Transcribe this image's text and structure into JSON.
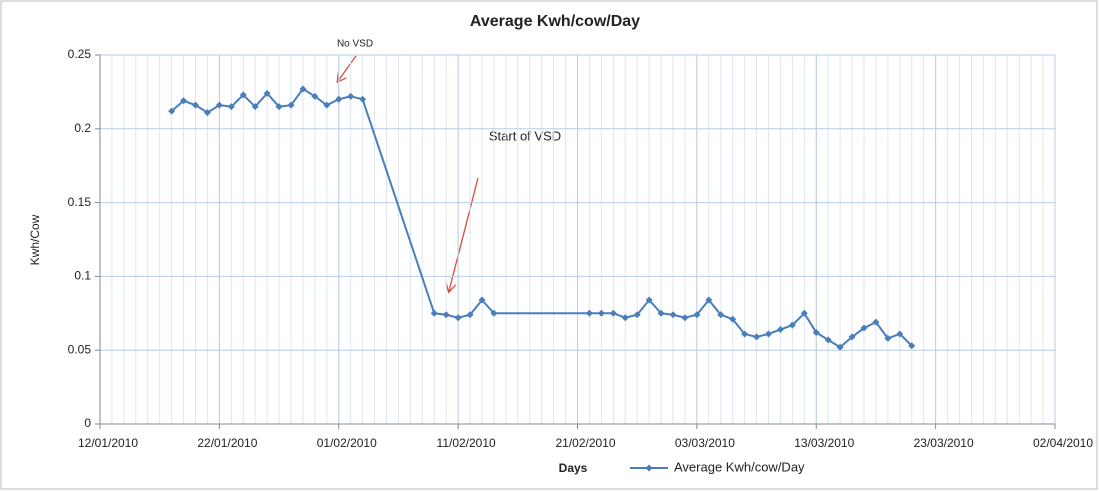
{
  "chart_data": {
    "type": "line",
    "title": "Average Kwh/cow/Day",
    "x_label": "Days",
    "y_label": "Kwh/Cow",
    "annotations": [
      "No VSD",
      "Start of VSD"
    ],
    "x": [
      "2010-01-18",
      "2010-01-19",
      "2010-01-20",
      "2010-01-21",
      "2010-01-22",
      "2010-01-23",
      "2010-01-24",
      "2010-01-25",
      "2010-01-26",
      "2010-01-27",
      "2010-01-28",
      "2010-01-29",
      "2010-01-30",
      "2010-01-31",
      "2010-02-01",
      "2010-02-02",
      "2010-02-03",
      "2010-02-09",
      "2010-02-10",
      "2010-02-11",
      "2010-02-12",
      "2010-02-13",
      "2010-02-14",
      "2010-02-22",
      "2010-02-23",
      "2010-02-24",
      "2010-02-25",
      "2010-02-26",
      "2010-02-27",
      "2010-02-28",
      "2010-03-01",
      "2010-03-02",
      "2010-03-03",
      "2010-03-04",
      "2010-03-05",
      "2010-03-06",
      "2010-03-07",
      "2010-03-08",
      "2010-03-09",
      "2010-03-10",
      "2010-03-11",
      "2010-03-12",
      "2010-03-13",
      "2010-03-14",
      "2010-03-15",
      "2010-03-16",
      "2010-03-17",
      "2010-03-18",
      "2010-03-19",
      "2010-03-20",
      "2010-03-21"
    ],
    "series": [
      {
        "name": "Average Kwh/cow/Day",
        "color": "#4a7ebb",
        "values": [
          0.212,
          0.219,
          0.216,
          0.211,
          0.216,
          0.215,
          0.223,
          0.215,
          0.224,
          0.215,
          0.216,
          0.227,
          0.222,
          0.216,
          0.22,
          0.222,
          0.22,
          0.075,
          0.074,
          0.072,
          0.074,
          0.084,
          0.075,
          0.075,
          0.075,
          0.075,
          0.072,
          0.074,
          0.084,
          0.075,
          0.074,
          0.072,
          0.074,
          0.084,
          0.074,
          0.071,
          0.061,
          0.059,
          0.061,
          0.064,
          0.067,
          0.075,
          0.062,
          0.057,
          0.052,
          0.059,
          0.065,
          0.069,
          0.058,
          0.061,
          0.053
        ]
      }
    ],
    "xlim": [
      "2010-01-12",
      "2010-04-02"
    ],
    "xticks": [
      {
        "value": "2010-01-12",
        "label": "12/01/2010"
      },
      {
        "value": "2010-01-22",
        "label": "22/01/2010"
      },
      {
        "value": "2010-02-01",
        "label": "01/02/2010"
      },
      {
        "value": "2010-02-11",
        "label": "11/02/2010"
      },
      {
        "value": "2010-02-21",
        "label": "21/02/2010"
      },
      {
        "value": "2010-03-03",
        "label": "03/03/2010"
      },
      {
        "value": "2010-03-13",
        "label": "13/03/2010"
      },
      {
        "value": "2010-03-23",
        "label": "23/03/2010"
      },
      {
        "value": "2010-04-02",
        "label": "02/04/2010"
      }
    ],
    "ylim": [
      0,
      0.25
    ],
    "yticks": [
      0,
      0.05,
      0.1,
      0.15,
      0.2,
      0.25
    ],
    "grid": true,
    "legend": "bottom"
  }
}
